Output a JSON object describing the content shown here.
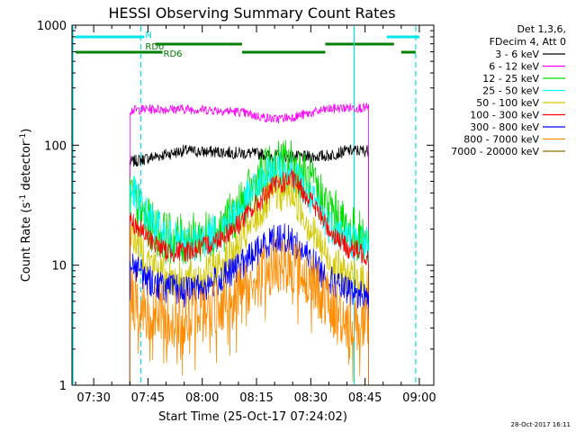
{
  "chart_data": {
    "type": "line",
    "title": "HESSI Observing Summary Count Rates",
    "xlabel": "Start Time (25-Oct-17 07:24:02)",
    "ylabel_main": "Count Rate (s",
    "ylabel_exp1": "-1",
    "ylabel_mid": " detector",
    "ylabel_exp2": "-1",
    "ylabel_end": ")",
    "y_scale": "log",
    "ylim": [
      1,
      1000
    ],
    "xlim": [
      "07:24",
      "09:04"
    ],
    "x_ticks": [
      "07:30",
      "07:45",
      "08:00",
      "08:15",
      "08:30",
      "08:45",
      "09:00"
    ],
    "y_ticks": [
      {
        "value": 1,
        "label": "1"
      },
      {
        "value": 10,
        "label": "10"
      },
      {
        "value": 100,
        "label": "100"
      },
      {
        "value": 1000,
        "label": "1000"
      }
    ],
    "legend_header": [
      "Det 1,3,6,",
      "FDecim 4, Att 0"
    ],
    "legend_position": "right",
    "timestamp": "28-Oct-2017 16:11",
    "data_start": "07:40",
    "data_end": "08:46",
    "series": [
      {
        "name": "3 - 6 keV",
        "color": "#000000",
        "points": [
          [
            "07:40",
            72
          ],
          [
            "07:45",
            78
          ],
          [
            "07:50",
            84
          ],
          [
            "07:55",
            90
          ],
          [
            "08:00",
            88
          ],
          [
            "08:05",
            88
          ],
          [
            "08:10",
            86
          ],
          [
            "08:15",
            85
          ],
          [
            "08:20",
            82
          ],
          [
            "08:25",
            80
          ],
          [
            "08:30",
            80
          ],
          [
            "08:35",
            82
          ],
          [
            "08:40",
            90
          ],
          [
            "08:46",
            90
          ]
        ]
      },
      {
        "name": "6 - 12 keV",
        "color": "#ff00ff",
        "points": [
          [
            "07:40",
            195
          ],
          [
            "07:45",
            200
          ],
          [
            "07:50",
            200
          ],
          [
            "07:55",
            200
          ],
          [
            "08:00",
            198
          ],
          [
            "08:05",
            195
          ],
          [
            "08:10",
            190
          ],
          [
            "08:15",
            175
          ],
          [
            "08:20",
            165
          ],
          [
            "08:25",
            172
          ],
          [
            "08:30",
            185
          ],
          [
            "08:35",
            200
          ],
          [
            "08:40",
            205
          ],
          [
            "08:46",
            205
          ]
        ]
      },
      {
        "name": "12 - 25 keV",
        "color": "#00dd00",
        "points": [
          [
            "07:40",
            40
          ],
          [
            "07:45",
            22
          ],
          [
            "07:50",
            17
          ],
          [
            "07:55",
            16
          ],
          [
            "08:00",
            17
          ],
          [
            "08:05",
            20
          ],
          [
            "08:10",
            28
          ],
          [
            "08:15",
            48
          ],
          [
            "08:20",
            68
          ],
          [
            "08:25",
            70
          ],
          [
            "08:30",
            48
          ],
          [
            "08:35",
            30
          ],
          [
            "08:40",
            20
          ],
          [
            "08:46",
            16
          ]
        ]
      },
      {
        "name": "25 - 50 keV",
        "color": "#00ffff",
        "points": [
          [
            "07:40",
            45
          ],
          [
            "07:45",
            25
          ],
          [
            "07:50",
            17
          ],
          [
            "07:55",
            15
          ],
          [
            "08:00",
            16
          ],
          [
            "08:05",
            20
          ],
          [
            "08:10",
            28
          ],
          [
            "08:15",
            45
          ],
          [
            "08:20",
            62
          ],
          [
            "08:25",
            60
          ],
          [
            "08:30",
            35
          ],
          [
            "08:35",
            22
          ],
          [
            "08:40",
            17
          ],
          [
            "08:46",
            15
          ]
        ]
      },
      {
        "name": "50 - 100 keV",
        "color": "#d4c800",
        "points": [
          [
            "07:40",
            20
          ],
          [
            "07:45",
            11
          ],
          [
            "07:50",
            8
          ],
          [
            "07:55",
            7.5
          ],
          [
            "08:00",
            8
          ],
          [
            "08:05",
            10
          ],
          [
            "08:10",
            14
          ],
          [
            "08:15",
            25
          ],
          [
            "08:20",
            40
          ],
          [
            "08:25",
            40
          ],
          [
            "08:30",
            20
          ],
          [
            "08:35",
            11
          ],
          [
            "08:40",
            8
          ],
          [
            "08:46",
            7
          ]
        ]
      },
      {
        "name": "100 - 300 keV",
        "color": "#ff0000",
        "points": [
          [
            "07:40",
            24
          ],
          [
            "07:45",
            17
          ],
          [
            "07:50",
            13
          ],
          [
            "07:55",
            13
          ],
          [
            "08:00",
            14
          ],
          [
            "08:05",
            17
          ],
          [
            "08:10",
            22
          ],
          [
            "08:15",
            32
          ],
          [
            "08:20",
            46
          ],
          [
            "08:25",
            52
          ],
          [
            "08:30",
            35
          ],
          [
            "08:35",
            20
          ],
          [
            "08:40",
            14
          ],
          [
            "08:46",
            12
          ]
        ]
      },
      {
        "name": "300 - 800 keV",
        "color": "#0000ff",
        "points": [
          [
            "07:40",
            11
          ],
          [
            "07:45",
            7.5
          ],
          [
            "07:50",
            6.5
          ],
          [
            "07:55",
            6
          ],
          [
            "08:00",
            6.5
          ],
          [
            "08:05",
            7.5
          ],
          [
            "08:10",
            9.5
          ],
          [
            "08:15",
            13
          ],
          [
            "08:20",
            17
          ],
          [
            "08:25",
            16
          ],
          [
            "08:30",
            11
          ],
          [
            "08:35",
            7.5
          ],
          [
            "08:40",
            6
          ],
          [
            "08:46",
            5.5
          ]
        ]
      },
      {
        "name": "800 - 7000 keV",
        "color": "#ff8c00",
        "points": [
          [
            "07:40",
            5.5
          ],
          [
            "07:45",
            4.2
          ],
          [
            "07:50",
            3.8
          ],
          [
            "07:55",
            3.8
          ],
          [
            "08:00",
            4
          ],
          [
            "08:05",
            4.8
          ],
          [
            "08:10",
            5.8
          ],
          [
            "08:15",
            7.5
          ],
          [
            "08:20",
            10.5
          ],
          [
            "08:25",
            10.5
          ],
          [
            "08:30",
            7.5
          ],
          [
            "08:35",
            4.8
          ],
          [
            "08:40",
            3.5
          ],
          [
            "08:46",
            3
          ]
        ]
      },
      {
        "name": "7000 - 20000 keV",
        "color": "#8b7500",
        "points": []
      }
    ],
    "annotations": [
      {
        "label": "N",
        "color": "#00e5ee"
      },
      {
        "label": "RD0",
        "color": "#008000"
      },
      {
        "label": "RD6",
        "color": "#008000"
      }
    ],
    "status_bars": [
      {
        "row": "N",
        "color": "#00e5ee",
        "spans": [
          [
            "07:25",
            "07:44"
          ],
          [
            "08:51",
            "09:00"
          ]
        ]
      },
      {
        "row": "RD0",
        "color": "#008000",
        "spans": [
          [
            "07:47",
            "08:11"
          ],
          [
            "08:34",
            "08:53"
          ]
        ]
      },
      {
        "row": "RD6",
        "color": "#008000",
        "spans": [
          [
            "07:25",
            "07:49"
          ],
          [
            "08:11",
            "08:34"
          ],
          [
            "08:55",
            "08:59"
          ]
        ]
      }
    ],
    "vertical_lines": [
      {
        "time": "07:24",
        "color": "#00e5ee",
        "style": "solid"
      },
      {
        "time": "07:43",
        "color": "#00e5ee",
        "style": "dashed"
      },
      {
        "time": "08:42",
        "color": "#00e5ee",
        "style": "solid"
      },
      {
        "time": "08:59",
        "color": "#00e5ee",
        "style": "dashed"
      }
    ]
  }
}
